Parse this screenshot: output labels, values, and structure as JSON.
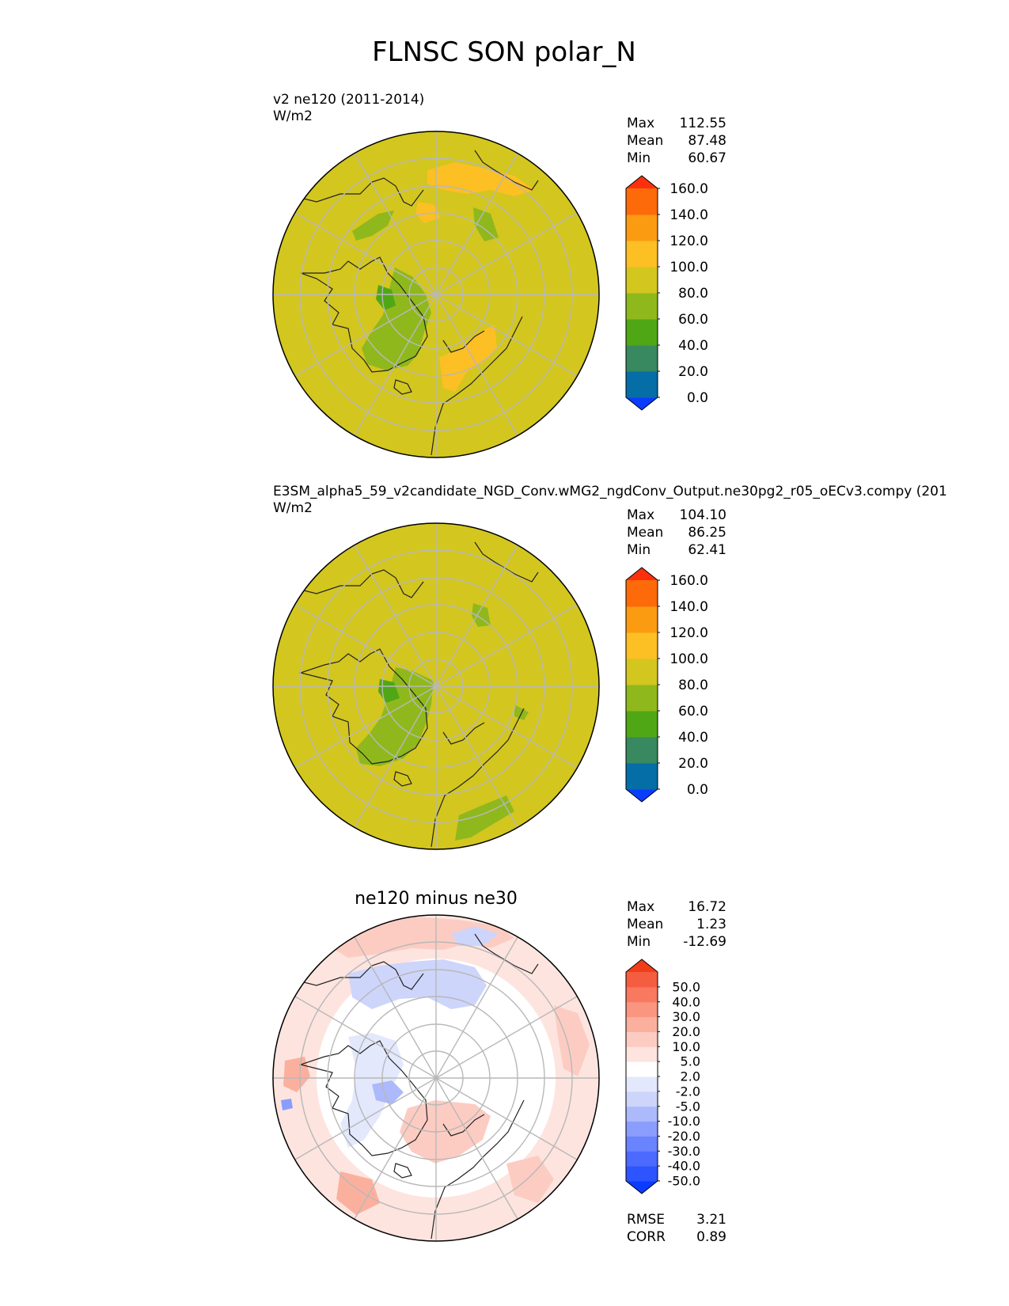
{
  "figure_title": "FLNSC SON polar_N",
  "panels": [
    {
      "title_line1": "v2 ne120 (2011-2014)",
      "units": "W/m2",
      "stats": {
        "labels": [
          "Max",
          "Mean",
          "Min"
        ],
        "values": [
          "112.55",
          "87.48",
          "60.67"
        ]
      }
    },
    {
      "title_line1": "E3SM_alpha5_59_v2candidate_NGD_Conv.wMG2_ngdConv_Output.ne30pg2_r05_oECv3.compy (201",
      "units": "W/m2",
      "stats": {
        "labels": [
          "Max",
          "Mean",
          "Min"
        ],
        "values": [
          "104.10",
          "86.25",
          "62.41"
        ]
      }
    },
    {
      "center_title": "ne120 minus ne30",
      "stats": {
        "labels": [
          "Max",
          "Mean",
          "Min"
        ],
        "values": [
          "16.72",
          "1.23",
          "-12.69"
        ]
      },
      "metrics": {
        "labels": [
          "RMSE",
          "CORR"
        ],
        "values": [
          "3.21",
          "0.89"
        ]
      }
    }
  ],
  "colorbars": {
    "field": {
      "ticks": [
        "0.0",
        "20.0",
        "40.0",
        "60.0",
        "80.0",
        "100.0",
        "120.0",
        "140.0",
        "160.0"
      ],
      "colors": [
        "#0a3cff",
        "#056ea6",
        "#388860",
        "#4fa716",
        "#8fb81d",
        "#d3c61f",
        "#fcbf24",
        "#fb9b12",
        "#fd6a0a",
        "#fd300d"
      ]
    },
    "diff": {
      "ticks": [
        "-50.0",
        "-40.0",
        "-30.0",
        "-20.0",
        "-10.0",
        "-5.0",
        "-2.0",
        "2.0",
        "5.0",
        "10.0",
        "20.0",
        "30.0",
        "40.0",
        "50.0"
      ],
      "colors": [
        "#0a3cfe",
        "#2d54fe",
        "#4c6afe",
        "#6a83fe",
        "#8a9dfd",
        "#acb9fb",
        "#cdd5fb",
        "#e3e8fc",
        "#ffffff",
        "#fde4df",
        "#fcccc2",
        "#fbb09e",
        "#fa9580",
        "#f97860",
        "#f55d40",
        "#f03e1a"
      ]
    }
  },
  "chart_data": [
    {
      "type": "heatmap",
      "projection": "north-polar-stereographic",
      "title": "v2 ne120 (2011-2014)",
      "units": "W/m2",
      "levels": [
        0,
        20,
        40,
        60,
        80,
        100,
        120,
        140,
        160
      ],
      "stats": {
        "max": 112.55,
        "mean": 87.48,
        "min": 60.67
      }
    },
    {
      "type": "heatmap",
      "projection": "north-polar-stereographic",
      "title": "E3SM_alpha5_59_v2candidate_NGD_Conv.wMG2_ngdConv_Output.ne30pg2_r05_oECv3.compy",
      "units": "W/m2",
      "levels": [
        0,
        20,
        40,
        60,
        80,
        100,
        120,
        140,
        160
      ],
      "stats": {
        "max": 104.1,
        "mean": 86.25,
        "min": 62.41
      }
    },
    {
      "type": "heatmap",
      "projection": "north-polar-stereographic",
      "title": "ne120 minus ne30",
      "levels": [
        -50,
        -40,
        -30,
        -20,
        -10,
        -5,
        -2,
        2,
        5,
        10,
        20,
        30,
        40,
        50
      ],
      "stats": {
        "max": 16.72,
        "mean": 1.23,
        "min": -12.69,
        "rmse": 3.21,
        "corr": 0.89
      }
    }
  ]
}
